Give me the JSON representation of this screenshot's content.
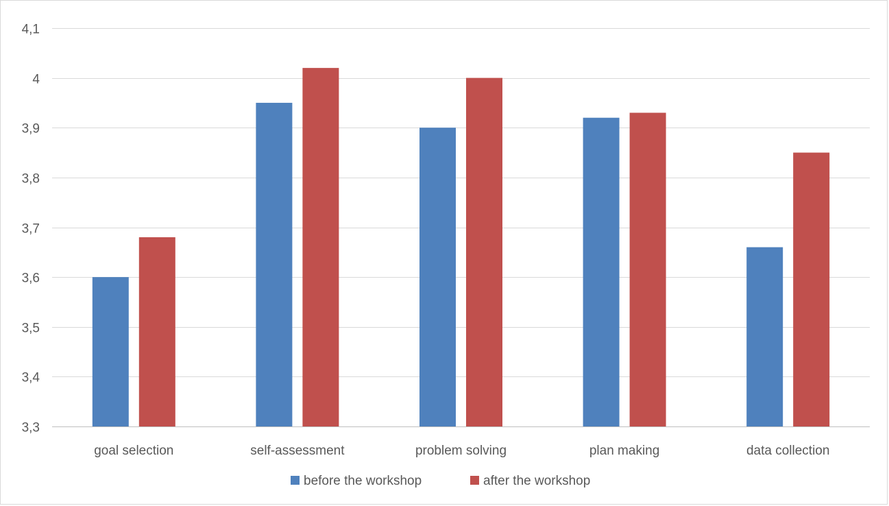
{
  "chart_data": {
    "type": "bar",
    "title": "",
    "xlabel": "",
    "ylabel": "",
    "categories": [
      "goal selection",
      "self-assessment",
      "problem solving",
      "plan making",
      "data collection"
    ],
    "series": [
      {
        "name": "before the workshop",
        "values": [
          3.6,
          3.95,
          3.9,
          3.92,
          3.66
        ]
      },
      {
        "name": "after the workshop",
        "values": [
          3.68,
          4.02,
          4.0,
          3.93,
          3.85
        ]
      }
    ],
    "ylim": [
      3.3,
      4.1
    ],
    "yticks": [
      "3,3",
      "3,4",
      "3,5",
      "3,6",
      "3,7",
      "3,8",
      "3,9",
      "4",
      "4,1"
    ],
    "grid": true,
    "legend_position": "bottom-center"
  },
  "colors": {
    "before": "#4f81bd",
    "after": "#c0504d",
    "grid": "#d9d9d9",
    "axis": "#bfbfbf",
    "text": "#595959"
  }
}
